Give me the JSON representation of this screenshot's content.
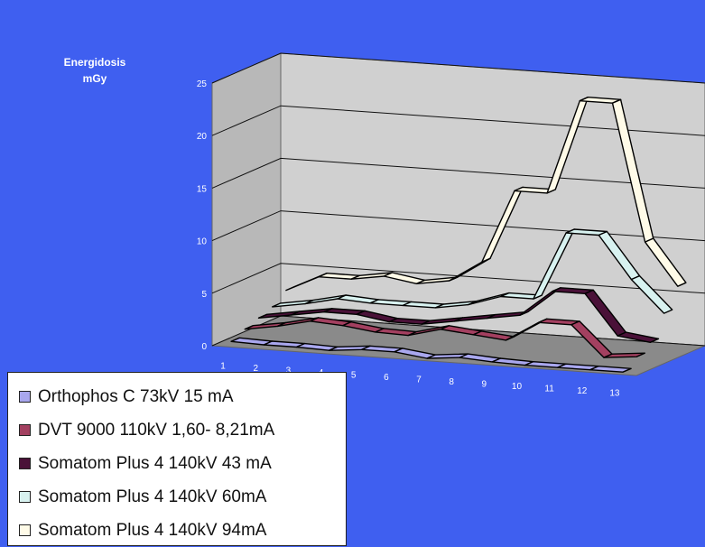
{
  "chart_data": {
    "type": "line",
    "style": "3d-ribbon",
    "ylabel": "Energidosis mGy",
    "ylabel_lines": [
      "Energidosis",
      "mGy"
    ],
    "ylim": [
      0,
      25
    ],
    "yticks": [
      "0",
      "5",
      "10",
      "15",
      "20",
      "25"
    ],
    "categories": [
      "1",
      "2",
      "3",
      "4",
      "5",
      "6",
      "7",
      "8",
      "9",
      "10",
      "11",
      "12",
      "13"
    ],
    "grid": true,
    "legend_position": "bottom-left",
    "series": [
      {
        "name": "Orthophos C 73kV 15 mA",
        "color": "#a9a7ee",
        "values": [
          0.4,
          0.3,
          0.3,
          0.2,
          0.5,
          0.5,
          0.1,
          0.4,
          0.2,
          0.1,
          0.1,
          0.1,
          0.1
        ]
      },
      {
        "name": "DVT 9000 110kV 1,60- 8,21mA",
        "color": "#a34060",
        "values": [
          1.0,
          1.5,
          2.2,
          2.0,
          1.6,
          1.5,
          2.3,
          2.0,
          1.7,
          3.6,
          3.6,
          0.7,
          1.0
        ]
      },
      {
        "name": "Somatom Plus 4 140kV  43 mA",
        "color": "#4a1138",
        "values": [
          1.5,
          2.0,
          2.5,
          2.5,
          2.0,
          2.0,
          2.5,
          3.0,
          3.5,
          6.0,
          6.0,
          2.2,
          1.8
        ]
      },
      {
        "name": "Somatom Plus 4 140kV  60mA",
        "color": "#d8f2f0",
        "values": [
          2.0,
          2.5,
          3.2,
          3.0,
          3.0,
          3.0,
          3.5,
          4.5,
          4.5,
          11.0,
          11.0,
          7.0,
          4.0
        ]
      },
      {
        "name": "Somatom Plus 4 140kV   94mA",
        "color": "#fffbe8",
        "values": [
          3.0,
          4.5,
          4.5,
          5.0,
          4.5,
          5.0,
          7.0,
          14.0,
          14.0,
          23.0,
          23.0,
          10.0,
          6.0
        ]
      }
    ]
  }
}
